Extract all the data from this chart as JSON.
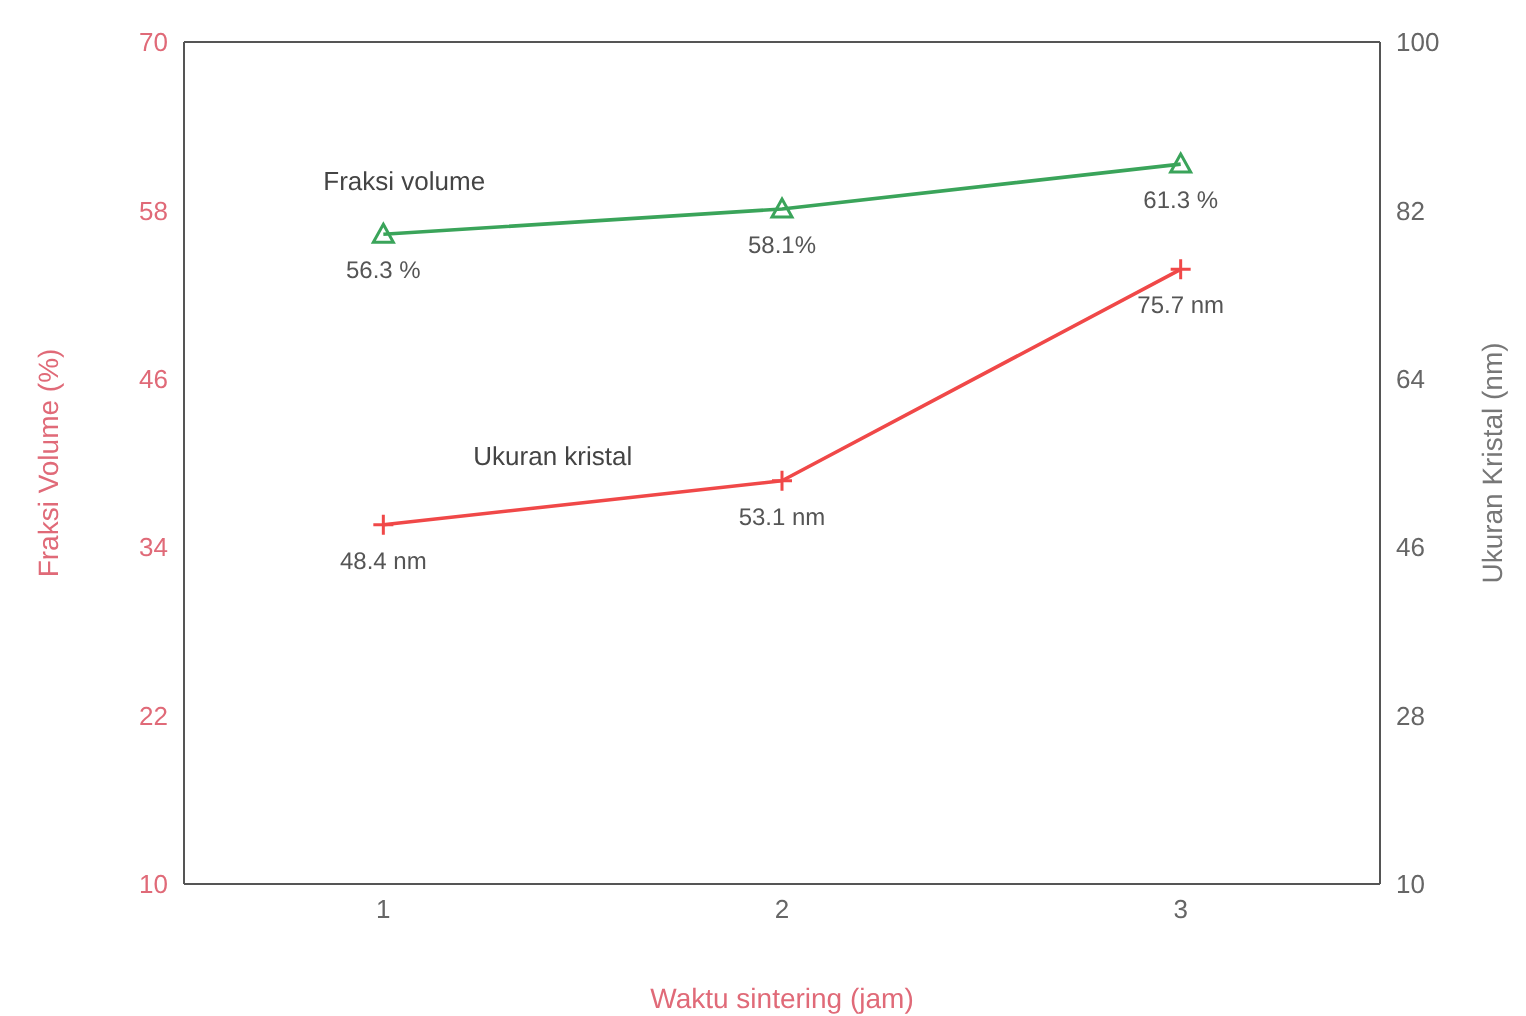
{
  "chart_data": {
    "type": "line",
    "xlabel": "Waktu sintering (jam)",
    "ylabel": "Fraksi Volume (%)",
    "y2label": "Ukuran Kristal (nm)",
    "x": [
      1,
      2,
      3
    ],
    "xlim": [
      0.5,
      3.5
    ],
    "xticks": [
      1,
      2,
      3
    ],
    "ylim": [
      10,
      70
    ],
    "yticks": [
      10,
      22,
      34,
      46,
      58,
      70
    ],
    "y2lim": [
      10,
      100
    ],
    "y2ticks": [
      10,
      28,
      46,
      64,
      82,
      100
    ],
    "line_style": "solid",
    "series": [
      {
        "name": "Fraksi volume",
        "color": "#3aa45a",
        "marker": "triangle",
        "values": [
          56.3,
          58.1,
          61.3
        ],
        "value_labels": [
          "56.3 %",
          "58.1%",
          "61.3 %"
        ]
      },
      {
        "name": "Ukuran kristal",
        "color": "#f04848",
        "marker": "cross",
        "axis": "y2",
        "values": [
          48.4,
          53.1,
          75.7
        ],
        "value_labels": [
          "48.4 nm",
          "53.1 nm",
          "75.7 nm"
        ]
      }
    ]
  }
}
